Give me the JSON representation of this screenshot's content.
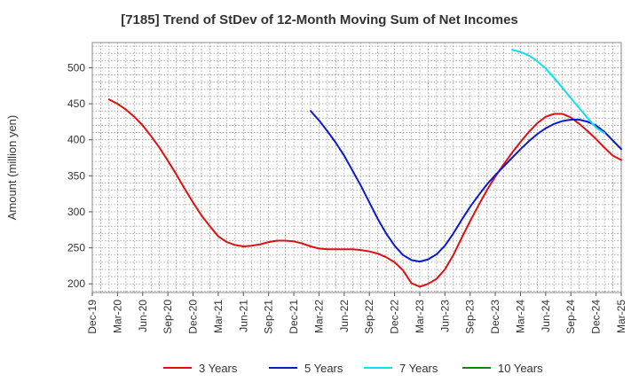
{
  "chart_data": {
    "type": "line",
    "title": "[7185]  Trend of StDev of 12-Month Moving Sum of Net Incomes",
    "xlabel": "",
    "ylabel": "Amount (million yen)",
    "x_ticks": [
      "Dec-19",
      "Mar-20",
      "Jun-20",
      "Sep-20",
      "Dec-20",
      "Mar-21",
      "Jun-21",
      "Sep-21",
      "Dec-21",
      "Mar-22",
      "Jun-22",
      "Sep-22",
      "Dec-22",
      "Mar-23",
      "Jun-23",
      "Sep-23",
      "Dec-23",
      "Mar-24",
      "Jun-24",
      "Sep-24",
      "Dec-24",
      "Mar-25"
    ],
    "x_range": [
      "Dec-19",
      "Mar-25"
    ],
    "ylim": [
      188,
      535
    ],
    "y_ticks": [
      200,
      250,
      300,
      350,
      400,
      450,
      500
    ],
    "grid": true,
    "legend_position": "bottom",
    "series": [
      {
        "name": "3 Years",
        "color": "#dd1111",
        "points": [
          [
            "Feb-20",
            456
          ],
          [
            "Mar-20",
            450
          ],
          [
            "Apr-20",
            442
          ],
          [
            "May-20",
            432
          ],
          [
            "Jun-20",
            420
          ],
          [
            "Jul-20",
            405
          ],
          [
            "Aug-20",
            389
          ],
          [
            "Sep-20",
            371
          ],
          [
            "Oct-20",
            352
          ],
          [
            "Nov-20",
            332
          ],
          [
            "Dec-20",
            313
          ],
          [
            "Jan-21",
            295
          ],
          [
            "Feb-21",
            280
          ],
          [
            "Mar-21",
            266
          ],
          [
            "Apr-21",
            258
          ],
          [
            "May-21",
            254
          ],
          [
            "Jun-21",
            252
          ],
          [
            "Jul-21",
            253
          ],
          [
            "Aug-21",
            255
          ],
          [
            "Sep-21",
            258
          ],
          [
            "Oct-21",
            260
          ],
          [
            "Nov-21",
            260
          ],
          [
            "Dec-21",
            259
          ],
          [
            "Jan-22",
            256
          ],
          [
            "Feb-22",
            252
          ],
          [
            "Mar-22",
            249
          ],
          [
            "Apr-22",
            248
          ],
          [
            "May-22",
            248
          ],
          [
            "Jun-22",
            248
          ],
          [
            "Jul-22",
            248
          ],
          [
            "Aug-22",
            247
          ],
          [
            "Sep-22",
            245
          ],
          [
            "Oct-22",
            242
          ],
          [
            "Nov-22",
            237
          ],
          [
            "Dec-22",
            230
          ],
          [
            "Jan-23",
            219
          ],
          [
            "Feb-23",
            201
          ],
          [
            "Mar-23",
            196
          ],
          [
            "Apr-23",
            200
          ],
          [
            "May-23",
            207
          ],
          [
            "Jun-23",
            220
          ],
          [
            "Jul-23",
            240
          ],
          [
            "Aug-23",
            264
          ],
          [
            "Sep-23",
            287
          ],
          [
            "Oct-23",
            309
          ],
          [
            "Nov-23",
            330
          ],
          [
            "Dec-23",
            349
          ],
          [
            "Jan-24",
            366
          ],
          [
            "Feb-24",
            382
          ],
          [
            "Mar-24",
            397
          ],
          [
            "Apr-24",
            411
          ],
          [
            "May-24",
            423
          ],
          [
            "Jun-24",
            432
          ],
          [
            "Jul-24",
            436
          ],
          [
            "Aug-24",
            436
          ],
          [
            "Sep-24",
            431
          ],
          [
            "Oct-24",
            422
          ],
          [
            "Nov-24",
            412
          ],
          [
            "Dec-24",
            401
          ],
          [
            "Jan-25",
            389
          ],
          [
            "Feb-25",
            378
          ],
          [
            "Mar-25",
            372
          ]
        ]
      },
      {
        "name": "5 Years",
        "color": "#0a1ad0",
        "points": [
          [
            "Feb-22",
            440
          ],
          [
            "Mar-22",
            427
          ],
          [
            "Apr-22",
            412
          ],
          [
            "May-22",
            396
          ],
          [
            "Jun-22",
            378
          ],
          [
            "Jul-22",
            357
          ],
          [
            "Aug-22",
            336
          ],
          [
            "Sep-22",
            313
          ],
          [
            "Oct-22",
            290
          ],
          [
            "Nov-22",
            270
          ],
          [
            "Dec-22",
            253
          ],
          [
            "Jan-23",
            240
          ],
          [
            "Feb-23",
            233
          ],
          [
            "Mar-23",
            231
          ],
          [
            "Apr-23",
            234
          ],
          [
            "May-23",
            241
          ],
          [
            "Jun-23",
            253
          ],
          [
            "Jul-23",
            270
          ],
          [
            "Aug-23",
            289
          ],
          [
            "Sep-23",
            307
          ],
          [
            "Oct-23",
            323
          ],
          [
            "Nov-23",
            338
          ],
          [
            "Dec-23",
            351
          ],
          [
            "Jan-24",
            363
          ],
          [
            "Feb-24",
            375
          ],
          [
            "Mar-24",
            387
          ],
          [
            "Apr-24",
            398
          ],
          [
            "May-24",
            408
          ],
          [
            "Jun-24",
            416
          ],
          [
            "Jul-24",
            422
          ],
          [
            "Aug-24",
            426
          ],
          [
            "Sep-24",
            428
          ],
          [
            "Oct-24",
            428
          ],
          [
            "Nov-24",
            425
          ],
          [
            "Dec-24",
            420
          ],
          [
            "Jan-25",
            411
          ],
          [
            "Feb-25",
            399
          ],
          [
            "Mar-25",
            387
          ]
        ]
      },
      {
        "name": "7 Years",
        "color": "#11e0e8",
        "points": [
          [
            "Feb-24",
            525
          ],
          [
            "Mar-24",
            522
          ],
          [
            "Apr-24",
            517
          ],
          [
            "May-24",
            509
          ],
          [
            "Jun-24",
            499
          ],
          [
            "Jul-24",
            486
          ],
          [
            "Aug-24",
            472
          ],
          [
            "Sep-24",
            458
          ],
          [
            "Oct-24",
            444
          ],
          [
            "Nov-24",
            430
          ],
          [
            "Dec-24",
            417
          ],
          [
            "Jan-25",
            409
          ]
        ]
      },
      {
        "name": "10 Years",
        "color": "#118811",
        "points": []
      }
    ]
  }
}
